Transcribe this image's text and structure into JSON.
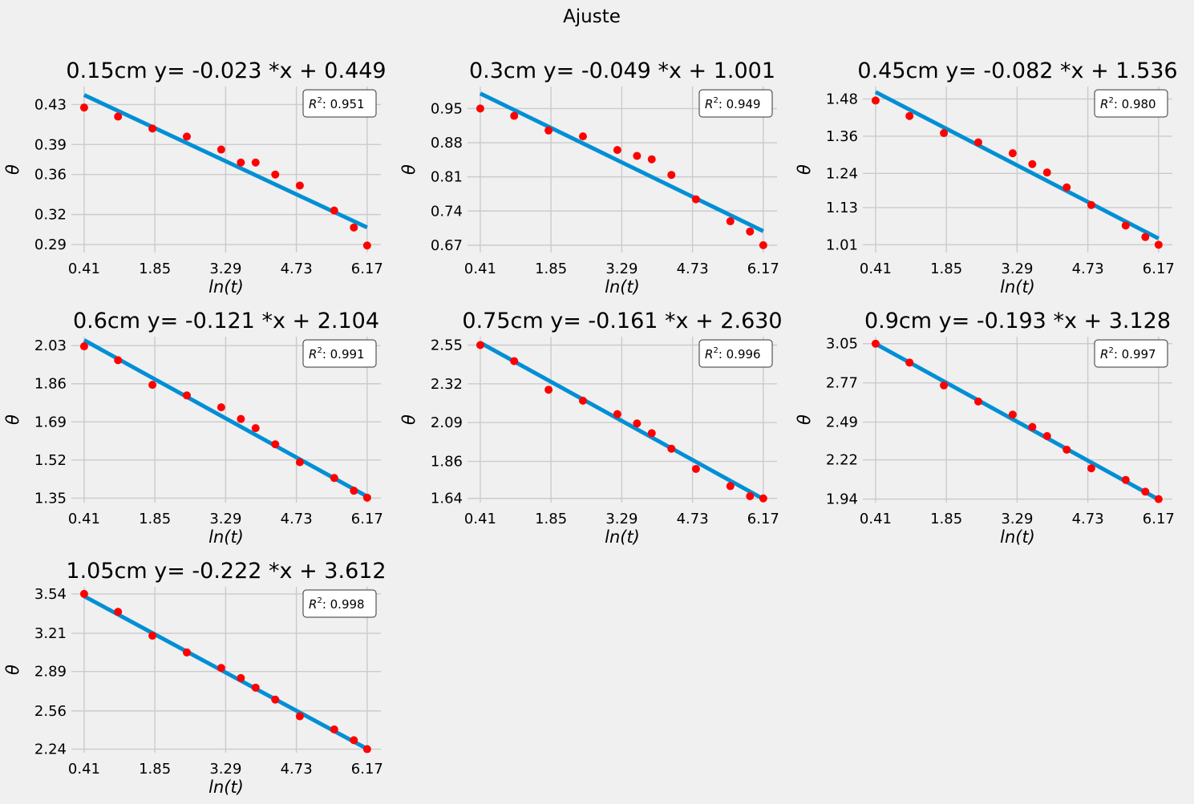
{
  "figure": {
    "suptitle": "Ajuste"
  },
  "colors": {
    "background": "#f0f0f0",
    "axes_bg": "#f0f0f0",
    "grid": "#cbcbcb",
    "fit_line": "#008fd5",
    "points": "#ff0000"
  },
  "chart_data": [
    {
      "type": "scatter",
      "title": "0.15cm  y= -0.023 *x + 0.449",
      "xlabel": "ln(t)",
      "ylabel": "θ",
      "xticks": [
        "0.41",
        "1.85",
        "3.29",
        "4.73",
        "6.17"
      ],
      "yticks": [
        "0.29",
        "0.32",
        "0.36",
        "0.39",
        "0.43"
      ],
      "xlim": [
        0.15,
        6.45
      ],
      "ylim": [
        0.282,
        0.448
      ],
      "x": [
        0.41,
        1.1,
        1.8,
        2.5,
        3.2,
        3.6,
        3.9,
        4.3,
        4.8,
        5.5,
        5.9,
        6.17
      ],
      "y": [
        0.427,
        0.418,
        0.406,
        0.398,
        0.385,
        0.372,
        0.372,
        0.36,
        0.349,
        0.324,
        0.307,
        0.289
      ],
      "fit": {
        "slope": -0.023,
        "intercept": 0.449
      },
      "r2_prefix": "R",
      "r2_sup": "2",
      "r2_value": ": 0.951",
      "grid": true,
      "legend": "top-right"
    },
    {
      "type": "scatter",
      "title": "0.3cm  y= -0.049 *x + 1.001",
      "xlabel": "ln(t)",
      "ylabel": "θ",
      "xticks": [
        "0.41",
        "1.85",
        "3.29",
        "4.73",
        "6.17"
      ],
      "yticks": [
        "0.67",
        "0.74",
        "0.81",
        "0.88",
        "0.95"
      ],
      "xlim": [
        0.15,
        6.45
      ],
      "ylim": [
        0.655,
        0.995
      ],
      "x": [
        0.41,
        1.1,
        1.8,
        2.5,
        3.2,
        3.6,
        3.9,
        4.3,
        4.8,
        5.5,
        5.9,
        6.17
      ],
      "y": [
        0.95,
        0.935,
        0.905,
        0.893,
        0.865,
        0.853,
        0.846,
        0.814,
        0.764,
        0.719,
        0.698,
        0.67
      ],
      "fit": {
        "slope": -0.049,
        "intercept": 1.001
      },
      "r2_prefix": "R",
      "r2_sup": "2",
      "r2_value": ": 0.949",
      "grid": true,
      "legend": "top-right"
    },
    {
      "type": "scatter",
      "title": "0.45cm  y= -0.082 *x + 1.536",
      "xlabel": "ln(t)",
      "ylabel": "θ",
      "xticks": [
        "0.41",
        "1.85",
        "3.29",
        "4.73",
        "6.17"
      ],
      "yticks": [
        "1.01",
        "1.13",
        "1.24",
        "1.36",
        "1.48"
      ],
      "xlim": [
        0.15,
        6.45
      ],
      "ylim": [
        0.985,
        1.52
      ],
      "x": [
        0.41,
        1.1,
        1.8,
        2.5,
        3.2,
        3.6,
        3.9,
        4.3,
        4.8,
        5.5,
        5.9,
        6.17
      ],
      "y": [
        1.475,
        1.425,
        1.37,
        1.34,
        1.305,
        1.27,
        1.243,
        1.195,
        1.138,
        1.072,
        1.035,
        1.01
      ],
      "fit": {
        "slope": -0.082,
        "intercept": 1.536
      },
      "r2_prefix": "R",
      "r2_sup": "2",
      "r2_value": ": 0.980",
      "grid": true,
      "legend": "top-right"
    },
    {
      "type": "scatter",
      "title": "0.6cm  y= -0.121 *x + 2.104",
      "xlabel": "ln(t)",
      "ylabel": "θ",
      "xticks": [
        "0.41",
        "1.85",
        "3.29",
        "4.73",
        "6.17"
      ],
      "yticks": [
        "1.35",
        "1.52",
        "1.69",
        "1.86",
        "2.03"
      ],
      "xlim": [
        0.15,
        6.45
      ],
      "ylim": [
        1.33,
        2.07
      ],
      "x": [
        0.41,
        1.1,
        1.8,
        2.5,
        3.2,
        3.6,
        3.9,
        4.3,
        4.8,
        5.5,
        5.9,
        6.17
      ],
      "y": [
        2.027,
        1.965,
        1.855,
        1.808,
        1.755,
        1.703,
        1.662,
        1.59,
        1.51,
        1.44,
        1.383,
        1.352
      ],
      "fit": {
        "slope": -0.121,
        "intercept": 2.104
      },
      "r2_prefix": "R",
      "r2_sup": "2",
      "r2_value": ": 0.991",
      "grid": true,
      "legend": "top-right"
    },
    {
      "type": "scatter",
      "title": "0.75cm  y= -0.161 *x + 2.630",
      "xlabel": "ln(t)",
      "ylabel": "θ",
      "xticks": [
        "0.41",
        "1.85",
        "3.29",
        "4.73",
        "6.17"
      ],
      "yticks": [
        "1.64",
        "1.86",
        "2.09",
        "2.32",
        "2.55"
      ],
      "xlim": [
        0.15,
        6.45
      ],
      "ylim": [
        1.615,
        2.6
      ],
      "x": [
        0.41,
        1.1,
        1.8,
        2.5,
        3.2,
        3.6,
        3.9,
        4.3,
        4.8,
        5.5,
        5.9,
        6.17
      ],
      "y": [
        2.55,
        2.455,
        2.285,
        2.22,
        2.14,
        2.085,
        2.027,
        1.935,
        1.815,
        1.713,
        1.653,
        1.64
      ],
      "fit": {
        "slope": -0.161,
        "intercept": 2.63
      },
      "r2_prefix": "R",
      "r2_sup": "2",
      "r2_value": ": 0.996",
      "grid": true,
      "legend": "top-right"
    },
    {
      "type": "scatter",
      "title": "0.9cm  y= -0.193 *x + 3.128",
      "xlabel": "ln(t)",
      "ylabel": "θ",
      "xticks": [
        "0.41",
        "1.85",
        "3.29",
        "4.73",
        "6.17"
      ],
      "yticks": [
        "1.94",
        "2.22",
        "2.49",
        "2.77",
        "3.05"
      ],
      "xlim": [
        0.15,
        6.45
      ],
      "ylim": [
        1.915,
        3.1
      ],
      "x": [
        0.41,
        1.1,
        1.8,
        2.5,
        3.2,
        3.6,
        3.9,
        4.3,
        4.8,
        5.5,
        5.9,
        6.17
      ],
      "y": [
        3.05,
        2.915,
        2.752,
        2.637,
        2.543,
        2.455,
        2.39,
        2.293,
        2.16,
        2.077,
        1.993,
        1.94
      ],
      "fit": {
        "slope": -0.193,
        "intercept": 3.128
      },
      "r2_prefix": "R",
      "r2_sup": "2",
      "r2_value": ": 0.997",
      "grid": true,
      "legend": "top-right"
    },
    {
      "type": "scatter",
      "title": "1.05cm  y= -0.222 *x + 3.612",
      "xlabel": "ln(t)",
      "ylabel": "θ",
      "xticks": [
        "0.41",
        "1.85",
        "3.29",
        "4.73",
        "6.17"
      ],
      "yticks": [
        "2.24",
        "2.56",
        "2.89",
        "3.21",
        "3.54"
      ],
      "xlim": [
        0.15,
        6.45
      ],
      "ylim": [
        2.21,
        3.6
      ],
      "x": [
        0.41,
        1.1,
        1.8,
        2.5,
        3.2,
        3.6,
        3.9,
        4.3,
        4.8,
        5.5,
        5.9,
        6.17
      ],
      "y": [
        3.54,
        3.39,
        3.19,
        3.05,
        2.92,
        2.835,
        2.755,
        2.655,
        2.515,
        2.405,
        2.315,
        2.24
      ],
      "fit": {
        "slope": -0.222,
        "intercept": 3.612
      },
      "r2_prefix": "R",
      "r2_sup": "2",
      "r2_value": ": 0.998",
      "grid": true,
      "legend": "top-right"
    }
  ]
}
